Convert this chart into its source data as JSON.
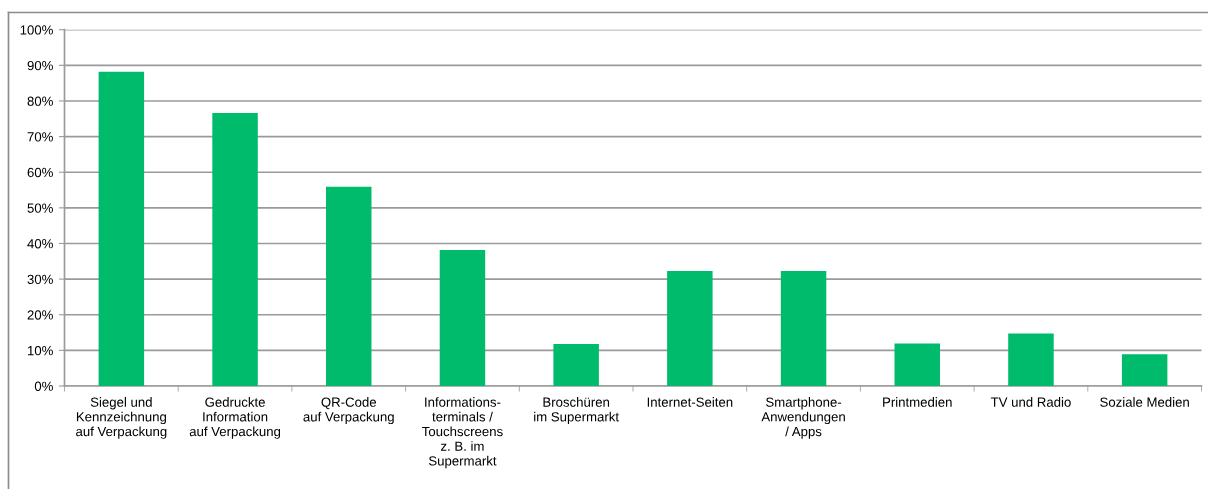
{
  "chart_data": {
    "type": "bar",
    "categories": [
      "Siegel und\nKennzeichnung\nauf Verpackung",
      "Gedruckte\nInformation\nauf Verpackung",
      "QR-Code\nauf Verpackung",
      "Informations-\nterminals /\nTouchscreens\nz. B. im\nSupermarkt",
      "Broschüren\nim Supermarkt",
      "Internet-Seiten",
      "Smartphone-\nAnwendungen\n/ Apps",
      "Printmedien",
      "TV und Radio",
      "Soziale Medien"
    ],
    "values": [
      88.2,
      76.6,
      55.9,
      38.2,
      11.8,
      32.3,
      32.3,
      11.9,
      14.7,
      8.9
    ],
    "color": "#00bb6b",
    "ylim": [
      0,
      100
    ],
    "yticks": [
      {
        "value": 0,
        "label": "0%"
      },
      {
        "value": 10,
        "label": "10%"
      },
      {
        "value": 20,
        "label": "20%"
      },
      {
        "value": 30,
        "label": "30%"
      },
      {
        "value": 40,
        "label": "40%"
      },
      {
        "value": 50,
        "label": "50%"
      },
      {
        "value": 60,
        "label": "60%"
      },
      {
        "value": 70,
        "label": "70%"
      },
      {
        "value": 80,
        "label": "80%"
      },
      {
        "value": 90,
        "label": "90%"
      },
      {
        "value": 100,
        "label": "100%"
      }
    ],
    "grid": "y"
  }
}
